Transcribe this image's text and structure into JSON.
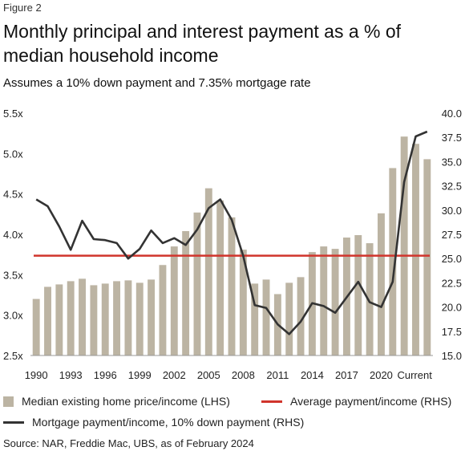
{
  "figure_label": "Figure 2",
  "title": "Monthly principal and interest payment as a % of median household income",
  "subtitle": "Assumes a 10% down payment and 7.35% mortgage rate",
  "source": "Source: NAR, Freddie Mac, UBS, as of February 2024",
  "colors": {
    "bars": "#bcb4a3",
    "average_line": "#d0342c",
    "payment_line": "#333333",
    "axis_text": "#222222"
  },
  "legend": {
    "bars": "Median existing home price/income (LHS)",
    "average": "Average payment/income (RHS)",
    "payment": "Mortgage payment/income, 10% down payment (RHS)"
  },
  "chart_data": {
    "type": "bar",
    "x_tick_labels": [
      "1990",
      "1993",
      "1996",
      "1999",
      "2002",
      "2005",
      "2008",
      "2011",
      "2014",
      "2017",
      "2020",
      "Current"
    ],
    "left_ticks": [
      "2.5x",
      "3.0x",
      "3.5x",
      "4.0x",
      "4.5x",
      "5.0x",
      "5.5x"
    ],
    "right_ticks": [
      "15.0",
      "17.5",
      "20.0",
      "22.5",
      "25.0",
      "27.5",
      "30.0",
      "32.5",
      "35.0",
      "37.5",
      "40.0"
    ],
    "ylim_left": [
      2.5,
      5.5
    ],
    "ylim_right": [
      15.0,
      40.0
    ],
    "series": [
      {
        "name": "Median existing home price/income (LHS)",
        "kind": "bar",
        "axis": "left",
        "values": [
          3.2,
          3.35,
          3.38,
          3.42,
          3.45,
          3.37,
          3.39,
          3.42,
          3.43,
          3.4,
          3.44,
          3.62,
          3.85,
          4.04,
          4.27,
          4.57,
          4.42,
          4.21,
          3.81,
          3.39,
          3.44,
          3.26,
          3.4,
          3.47,
          3.78,
          3.85,
          3.82,
          3.96,
          3.99,
          3.89,
          4.26,
          4.82,
          5.21,
          5.12,
          4.93
        ]
      },
      {
        "name": "Average payment/income (RHS)",
        "kind": "line",
        "axis": "right",
        "values": [
          25.3
        ]
      },
      {
        "name": "Mortgage payment/income, 10% down payment (RHS)",
        "kind": "line",
        "axis": "right",
        "values": [
          31.1,
          30.4,
          28.3,
          25.9,
          28.9,
          27.0,
          26.9,
          26.6,
          25.0,
          26.0,
          27.9,
          26.6,
          27.1,
          26.4,
          28.0,
          30.2,
          31.1,
          29.0,
          25.3,
          20.2,
          19.9,
          18.2,
          17.2,
          18.5,
          20.4,
          20.1,
          19.4,
          21.0,
          22.6,
          20.5,
          20.0,
          22.6,
          32.9,
          37.6,
          38.1
        ]
      }
    ],
    "grid": false,
    "legend_position": "bottom"
  }
}
